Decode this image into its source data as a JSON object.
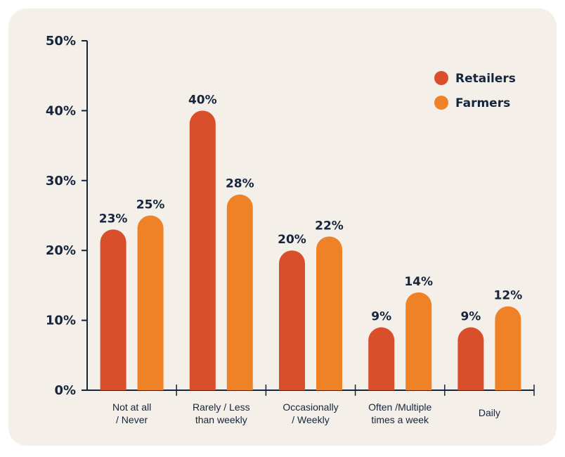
{
  "chart_data": {
    "type": "bar",
    "title": "",
    "xlabel": "",
    "ylabel": "",
    "ylim": [
      0,
      50
    ],
    "y_ticks": [
      "0%",
      "10%",
      "20%",
      "30%",
      "40%",
      "50%"
    ],
    "y_tick_values": [
      0,
      10,
      20,
      30,
      40,
      50
    ],
    "categories": [
      [
        "Not at all",
        "/ Never"
      ],
      [
        "Rarely / Less",
        "than weekly"
      ],
      [
        "Occasionally",
        "/ Weekly"
      ],
      [
        "Often /Multiple",
        "times a week"
      ],
      [
        "Daily"
      ]
    ],
    "series": [
      {
        "name": "Retailers",
        "color": "#d94e2b",
        "values": [
          23,
          40,
          20,
          9,
          9
        ],
        "labels": [
          "23%",
          "40%",
          "20%",
          "9%",
          "9%"
        ]
      },
      {
        "name": "Farmers",
        "color": "#ef8226",
        "values": [
          25,
          28,
          22,
          14,
          12
        ],
        "labels": [
          "25%",
          "28%",
          "22%",
          "14%",
          "12%"
        ]
      }
    ],
    "legend_position": "top-right",
    "grid": false,
    "axis_color": "#14253d"
  }
}
